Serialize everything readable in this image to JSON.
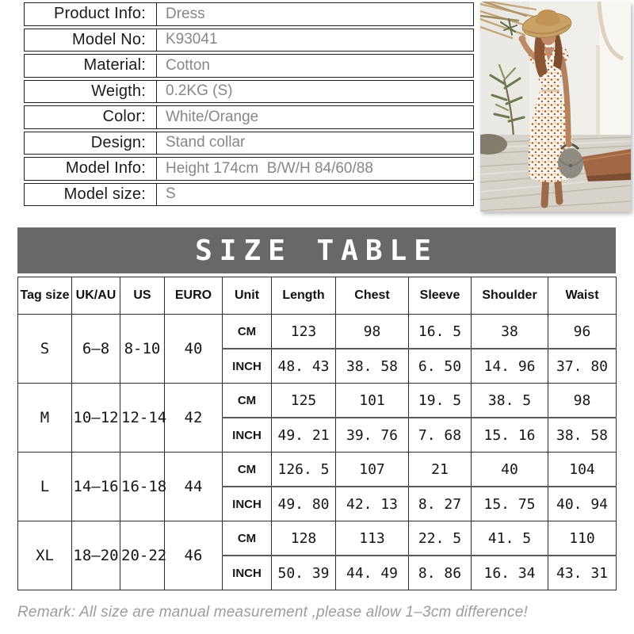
{
  "product_info": {
    "rows": [
      {
        "label": "Product Info:",
        "value": "Dress"
      },
      {
        "label": "Model No:",
        "value": "K93041"
      },
      {
        "label": "Material:",
        "value": "Cotton"
      },
      {
        "label": "Weigth:",
        "value": "0.2KG (S)"
      },
      {
        "label": "Color:",
        "value": "White/Orange"
      },
      {
        "label": "Design:",
        "value": "Stand collar"
      },
      {
        "label": "Model Info:",
        "value": "Height 174cm  B/W/H 84/60/88"
      },
      {
        "label": "Model size:",
        "value": "S"
      }
    ]
  },
  "photo": {
    "subject": "model in white dress with orange dots, straw hat, gray handbag",
    "colors": {
      "wall": "#f1efea",
      "deck": "#d7d3ca",
      "hat": "#c9a266",
      "dress_base": "#fbf6ee",
      "dot_orange": "#c06a2e",
      "bag": "#8f8b83",
      "plant": "#6d7950",
      "step": "#a06844",
      "skin": "#bd8a67"
    }
  },
  "size_table": {
    "title": "SIZE TABLE",
    "columns": [
      "Tag size",
      "UK/AU",
      "US",
      "EURO",
      "Unit",
      "Length",
      "Chest",
      "Sleeve",
      "Shoulder",
      "Waist"
    ],
    "unit_labels": [
      "CM",
      "INCH"
    ],
    "rows": [
      {
        "tag": "S",
        "uk_au": "6–8",
        "us": "8-10",
        "euro": "40",
        "cm": [
          "123",
          "98",
          "16. 5",
          "38",
          "96"
        ],
        "inch": [
          "48. 43",
          "38. 58",
          "6. 50",
          "14. 96",
          "37. 80"
        ]
      },
      {
        "tag": "M",
        "uk_au": "10–12",
        "us": "12-14",
        "euro": "42",
        "cm": [
          "125",
          "101",
          "19. 5",
          "38. 5",
          "98"
        ],
        "inch": [
          "49. 21",
          "39. 76",
          "7. 68",
          "15. 16",
          "38. 58"
        ]
      },
      {
        "tag": "L",
        "uk_au": "14–16",
        "us": "16-18",
        "euro": "44",
        "cm": [
          "126. 5",
          "107",
          "21",
          "40",
          "104"
        ],
        "inch": [
          "49. 80",
          "42. 13",
          "8. 27",
          "15. 75",
          "40. 94"
        ]
      },
      {
        "tag": "XL",
        "uk_au": "18–20",
        "us": "20-22",
        "euro": "46",
        "cm": [
          "128",
          "113",
          "22. 5",
          "41. 5",
          "110"
        ],
        "inch": [
          "50. 39",
          "44. 49",
          "8. 86",
          "16. 34",
          "43. 31"
        ]
      }
    ]
  },
  "remark": "Remark: All size are manual measurement ,please allow 1–3cm difference!",
  "theme": {
    "title_bar_bg": "#68686b",
    "title_text": "#ffffff",
    "label_text": "#1b1b1b",
    "value_text": "#85878a",
    "table_border": "#2d2d2d",
    "remark_text": "#9a9c9e"
  }
}
